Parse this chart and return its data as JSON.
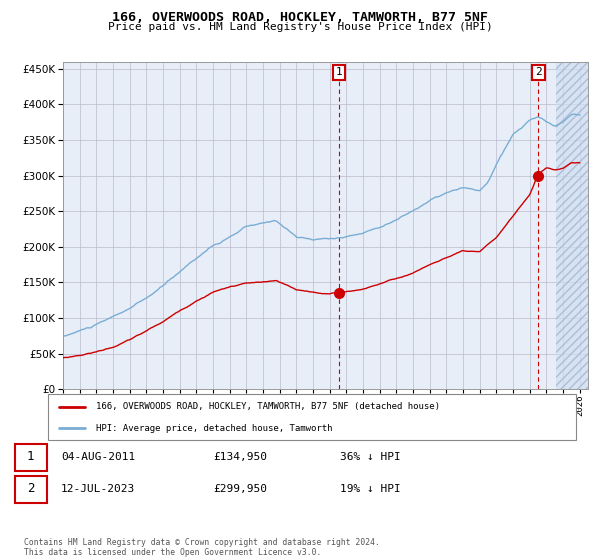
{
  "title": "166, OVERWOODS ROAD, HOCKLEY, TAMWORTH, B77 5NF",
  "subtitle": "Price paid vs. HM Land Registry's House Price Index (HPI)",
  "ylim": [
    0,
    460000
  ],
  "xlim_start": 1995.0,
  "xlim_end": 2026.5,
  "hpi_color": "#7aadd4",
  "price_color": "#cc0000",
  "sale1_date": 2011.58,
  "sale1_price": 134950,
  "sale2_date": 2023.53,
  "sale2_price": 299950,
  "legend_line1": "166, OVERWOODS ROAD, HOCKLEY, TAMWORTH, B77 5NF (detached house)",
  "legend_line2": "HPI: Average price, detached house, Tamworth",
  "annotation1_date": "04-AUG-2011",
  "annotation1_price": "£134,950",
  "annotation1_pct": "36% ↓ HPI",
  "annotation2_date": "12-JUL-2023",
  "annotation2_price": "£299,950",
  "annotation2_pct": "19% ↓ HPI",
  "footer": "Contains HM Land Registry data © Crown copyright and database right 2024.\nThis data is licensed under the Open Government Licence v3.0.",
  "background_color": "#e8eef8",
  "grid_color": "#bbbbcc",
  "future_start": 2024.58,
  "hpi_anchors_t": [
    1995.0,
    1996.0,
    1997.0,
    1998.0,
    1999.0,
    2000.0,
    2001.0,
    2002.0,
    2003.0,
    2004.0,
    2005.0,
    2006.0,
    2007.0,
    2007.8,
    2008.5,
    2009.0,
    2010.0,
    2011.0,
    2012.0,
    2013.0,
    2014.0,
    2015.0,
    2016.0,
    2017.0,
    2018.0,
    2019.0,
    2020.0,
    2020.5,
    2021.0,
    2022.0,
    2022.5,
    2023.0,
    2023.5,
    2024.0,
    2024.5,
    2025.0,
    2025.5
  ],
  "hpi_anchors_v": [
    74000,
    82000,
    90000,
    100000,
    112000,
    125000,
    142000,
    162000,
    182000,
    200000,
    210000,
    225000,
    228000,
    232000,
    220000,
    210000,
    205000,
    207000,
    210000,
    215000,
    225000,
    235000,
    248000,
    262000,
    272000,
    278000,
    272000,
    285000,
    310000,
    350000,
    360000,
    370000,
    375000,
    368000,
    362000,
    368000,
    378000
  ],
  "price_anchors_t": [
    1995.0,
    1996.0,
    1997.0,
    1998.0,
    1999.0,
    2000.0,
    2001.0,
    2002.0,
    2003.0,
    2004.0,
    2005.0,
    2006.0,
    2007.0,
    2007.8,
    2008.5,
    2009.0,
    2010.0,
    2011.0,
    2011.58,
    2012.0,
    2013.0,
    2014.0,
    2015.0,
    2016.0,
    2017.0,
    2018.0,
    2019.0,
    2020.0,
    2021.0,
    2022.0,
    2022.5,
    2023.0,
    2023.53,
    2024.0,
    2024.5,
    2025.0,
    2025.5
  ],
  "price_anchors_v": [
    44000,
    48000,
    53000,
    60000,
    70000,
    82000,
    95000,
    110000,
    125000,
    138000,
    145000,
    150000,
    151000,
    152000,
    145000,
    138000,
    135000,
    133000,
    134950,
    136000,
    140000,
    148000,
    155000,
    163000,
    175000,
    185000,
    193000,
    190000,
    210000,
    240000,
    255000,
    270000,
    299950,
    308000,
    305000,
    308000,
    315000
  ]
}
